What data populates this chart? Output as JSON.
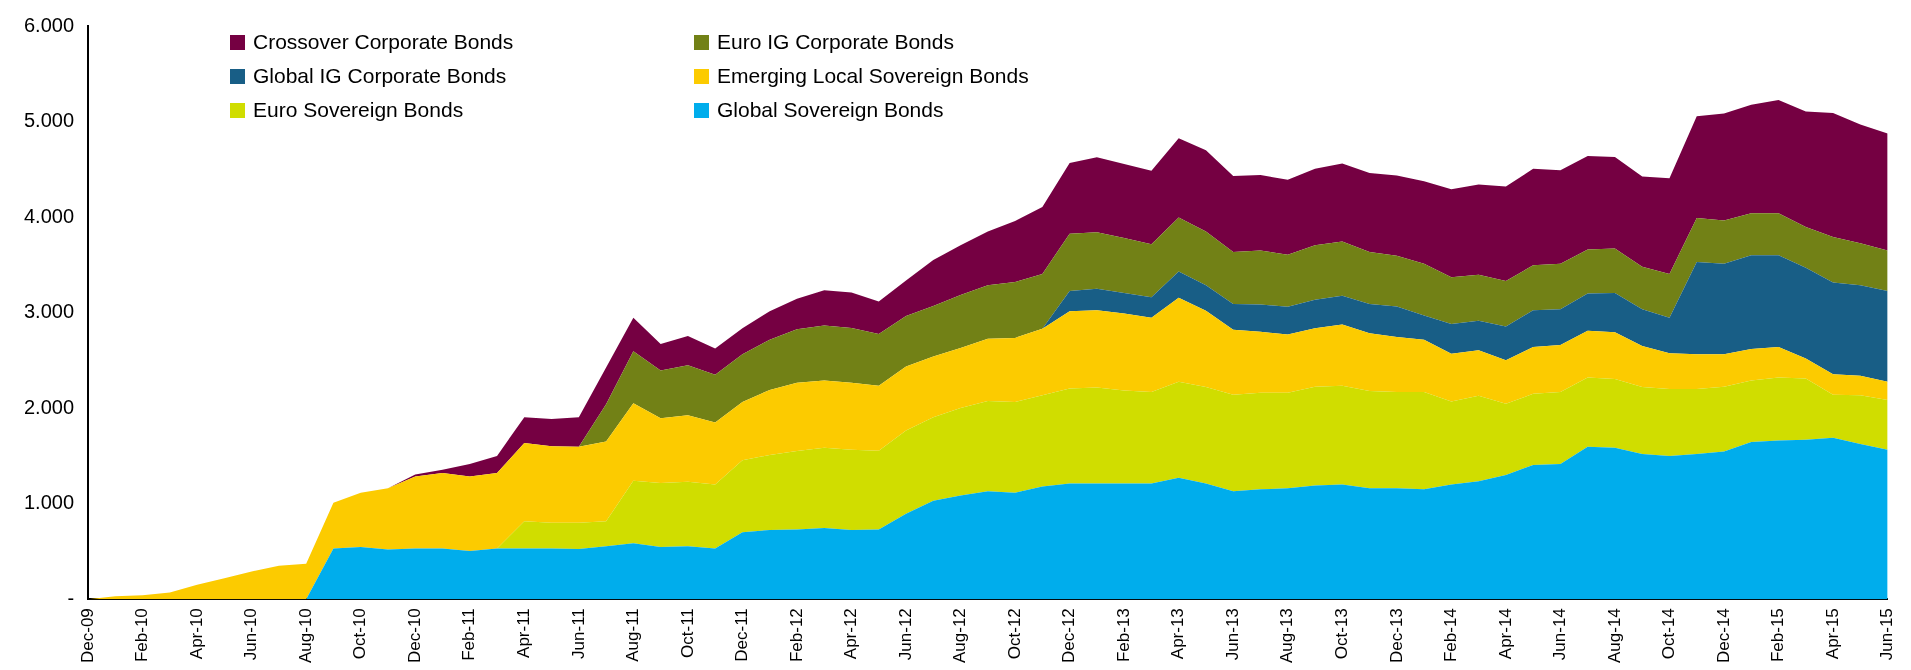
{
  "chart_data": {
    "type": "area",
    "stacked": true,
    "legend": "top left",
    "grid": false,
    "categories": [
      "Dec-09",
      null,
      "Feb-10",
      null,
      "Apr-10",
      null,
      "Jun-10",
      null,
      "Aug-10",
      null,
      "Oct-10",
      null,
      "Dec-10",
      null,
      "Feb-11",
      null,
      "Apr-11",
      null,
      "Jun-11",
      null,
      "Aug-11",
      null,
      "Oct-11",
      null,
      "Dec-11",
      null,
      "Feb-12",
      null,
      "Apr-12",
      null,
      "Jun-12",
      null,
      "Aug-12",
      null,
      "Oct-12",
      null,
      "Dec-12",
      null,
      "Feb-13",
      null,
      "Apr-13",
      null,
      "Jun-13",
      null,
      "Aug-13",
      null,
      "Oct-13",
      null,
      "Dec-13",
      null,
      "Feb-14",
      null,
      "Apr-14",
      null,
      "Jun-14",
      null,
      "Aug-14",
      null,
      "Oct-14",
      null,
      "Dec-14",
      null,
      "Feb-15",
      null,
      "Apr-15",
      null,
      "Jun-15"
    ],
    "ylim": [
      0,
      6000
    ],
    "yticks": [
      {
        "value": 0,
        "label": "-"
      },
      {
        "value": 1000,
        "label": "1.000"
      },
      {
        "value": 2000,
        "label": "2.000"
      },
      {
        "value": 3000,
        "label": "3.000"
      },
      {
        "value": 4000,
        "label": "4.000"
      },
      {
        "value": 5000,
        "label": "5.000"
      },
      {
        "value": 6000,
        "label": "6.000"
      }
    ],
    "series": [
      {
        "name": "Global Sovereign Bonds",
        "color": "#00adec",
        "values": [
          0,
          0,
          0,
          0,
          0,
          0,
          0,
          0,
          0,
          530,
          545,
          520,
          530,
          530,
          505,
          530,
          530,
          530,
          525,
          555,
          585,
          545,
          555,
          530,
          700,
          725,
          730,
          745,
          725,
          730,
          895,
          1030,
          1085,
          1130,
          1115,
          1180,
          1210,
          1210,
          1210,
          1210,
          1270,
          1210,
          1130,
          1150,
          1160,
          1190,
          1200,
          1160,
          1160,
          1150,
          1200,
          1235,
          1300,
          1405,
          1415,
          1595,
          1585,
          1520,
          1500,
          1520,
          1545,
          1645,
          1660,
          1670,
          1690,
          1625,
          1565
        ]
      },
      {
        "name": "Euro Sovereign Bonds",
        "color": "#d0dd00",
        "values": [
          0,
          0,
          0,
          0,
          0,
          0,
          0,
          0,
          0,
          0,
          0,
          0,
          0,
          0,
          0,
          0,
          285,
          270,
          275,
          260,
          655,
          670,
          675,
          670,
          755,
          785,
          820,
          840,
          840,
          825,
          870,
          875,
          915,
          945,
          950,
          955,
          995,
          1005,
          975,
          960,
          1005,
          1010,
          1010,
          1010,
          1000,
          1035,
          1035,
          1020,
          1010,
          1020,
          870,
          895,
          745,
          745,
          755,
          725,
          720,
          700,
          700,
          680,
          680,
          645,
          660,
          640,
          450,
          510,
          520
        ]
      },
      {
        "name": "Emerging Local Sovereign Bonds",
        "color": "#fccb00",
        "values": [
          0,
          30,
          40,
          70,
          150,
          220,
          290,
          350,
          370,
          480,
          570,
          640,
          755,
          790,
          780,
          790,
          820,
          800,
          795,
          835,
          810,
          680,
          695,
          650,
          610,
          680,
          715,
          705,
          700,
          680,
          670,
          635,
          630,
          650,
          670,
          695,
          810,
          810,
          805,
          775,
          880,
          800,
          680,
          640,
          610,
          610,
          640,
          605,
          575,
          545,
          500,
          475,
          455,
          490,
          490,
          490,
          490,
          430,
          375,
          365,
          340,
          330,
          320,
          210,
          215,
          205,
          190
        ]
      },
      {
        "name": "Global IG Corporate Bonds",
        "color": "#185e86",
        "values": [
          0,
          0,
          0,
          0,
          0,
          0,
          0,
          0,
          0,
          0,
          0,
          0,
          0,
          0,
          0,
          0,
          0,
          0,
          0,
          0,
          0,
          0,
          0,
          0,
          0,
          0,
          0,
          0,
          0,
          0,
          0,
          0,
          0,
          0,
          0,
          0,
          210,
          225,
          215,
          215,
          275,
          265,
          270,
          285,
          290,
          300,
          300,
          305,
          320,
          255,
          310,
          310,
          355,
          385,
          375,
          390,
          410,
          385,
          370,
          965,
          945,
          980,
          960,
          950,
          960,
          945,
          950
        ]
      },
      {
        "name": "Euro IG Corporate Bonds",
        "color": "#728116",
        "values": [
          0,
          0,
          0,
          0,
          0,
          0,
          0,
          0,
          0,
          0,
          0,
          0,
          0,
          0,
          0,
          0,
          0,
          0,
          0,
          390,
          545,
          500,
          525,
          500,
          500,
          525,
          560,
          575,
          575,
          540,
          530,
          530,
          555,
          560,
          585,
          575,
          600,
          590,
          575,
          555,
          565,
          565,
          545,
          565,
          545,
          570,
          570,
          545,
          530,
          540,
          490,
          480,
          475,
          470,
          475,
          460,
          465,
          445,
          460,
          460,
          455,
          440,
          440,
          425,
          475,
          440,
          425
        ]
      },
      {
        "name": "Crossover Corporate Bonds",
        "color": "#750042",
        "values": [
          0,
          0,
          0,
          0,
          0,
          0,
          0,
          0,
          0,
          0,
          0,
          0,
          20,
          35,
          130,
          180,
          270,
          285,
          310,
          385,
          350,
          275,
          305,
          275,
          270,
          300,
          320,
          370,
          370,
          340,
          370,
          480,
          520,
          565,
          640,
          700,
          740,
          785,
          775,
          770,
          830,
          850,
          795,
          790,
          785,
          800,
          815,
          825,
          840,
          865,
          920,
          945,
          990,
          1010,
          980,
          980,
          960,
          945,
          1000,
          1065,
          1120,
          1135,
          1185,
          1210,
          1300,
          1245,
          1225
        ]
      }
    ]
  }
}
